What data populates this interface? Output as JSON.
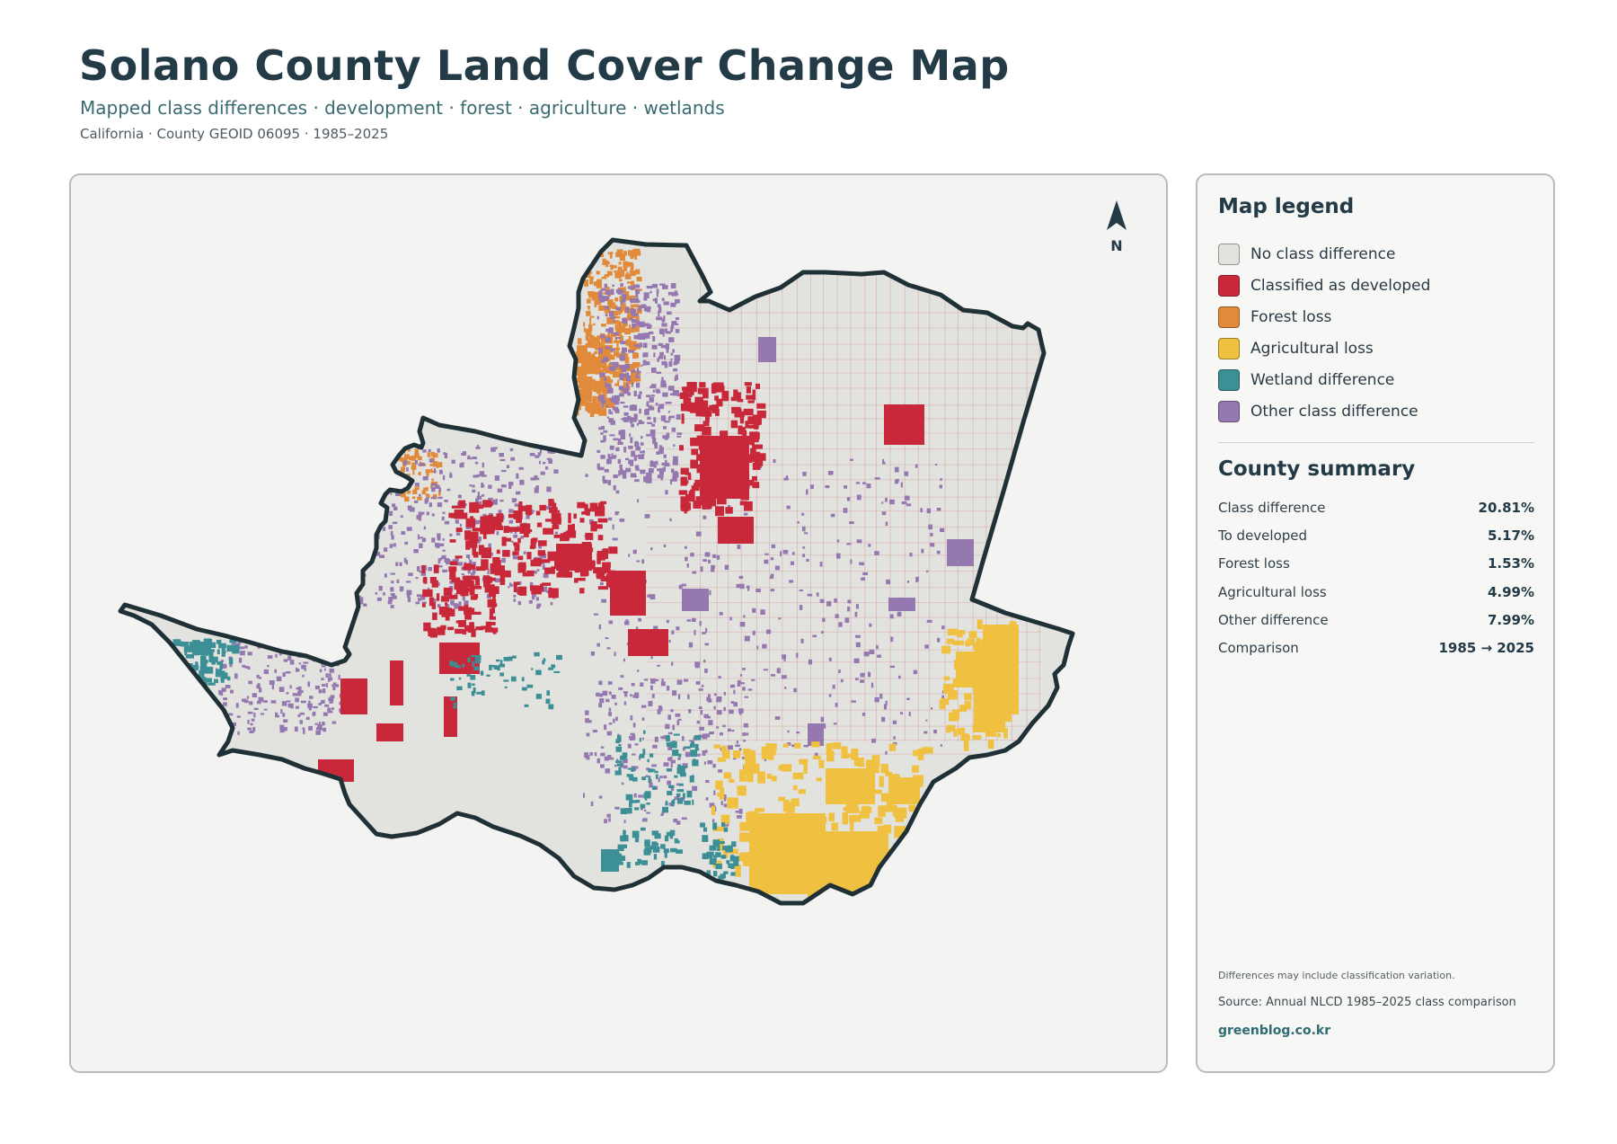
{
  "header": {
    "title": "Solano County Land Cover Change Map",
    "subtitle": "Mapped class differences · development · forest · agriculture · wetlands",
    "meta": "California · County GEOID 06095 · 1985–2025"
  },
  "map": {
    "north_label": "N",
    "colors": {
      "background": "#f3f3f1",
      "county_fill": "#e2e3df",
      "county_outline": "#1f3137",
      "developed": "#c8283a",
      "forest": "#e08a3a",
      "agriculture": "#f0c040",
      "wetland": "#3d8f96",
      "other": "#9678b0"
    }
  },
  "legend": {
    "title": "Map legend",
    "items": [
      {
        "label": "No class difference",
        "color": "#e2e3df",
        "icon": "gray-swatch"
      },
      {
        "label": "Classified as developed",
        "color": "#c8283a",
        "icon": "red-swatch"
      },
      {
        "label": "Forest loss",
        "color": "#e08a3a",
        "icon": "orange-swatch"
      },
      {
        "label": "Agricultural loss",
        "color": "#f0c040",
        "icon": "yellow-swatch"
      },
      {
        "label": "Wetland difference",
        "color": "#3d8f96",
        "icon": "teal-swatch"
      },
      {
        "label": "Other class difference",
        "color": "#9678b0",
        "icon": "purple-swatch"
      }
    ]
  },
  "summary": {
    "title": "County summary",
    "rows": [
      {
        "key": "Class difference",
        "value": "20.81%"
      },
      {
        "key": "To developed",
        "value": "5.17%"
      },
      {
        "key": "Forest loss",
        "value": "1.53%"
      },
      {
        "key": "Agricultural loss",
        "value": "4.99%"
      },
      {
        "key": "Other difference",
        "value": "7.99%"
      },
      {
        "key": "Comparison",
        "value": "1985 → 2025"
      }
    ]
  },
  "footer": {
    "note": "Differences may include classification variation.",
    "source": "Source: Annual NLCD 1985–2025 class comparison",
    "site": "greenblog.co.kr"
  }
}
